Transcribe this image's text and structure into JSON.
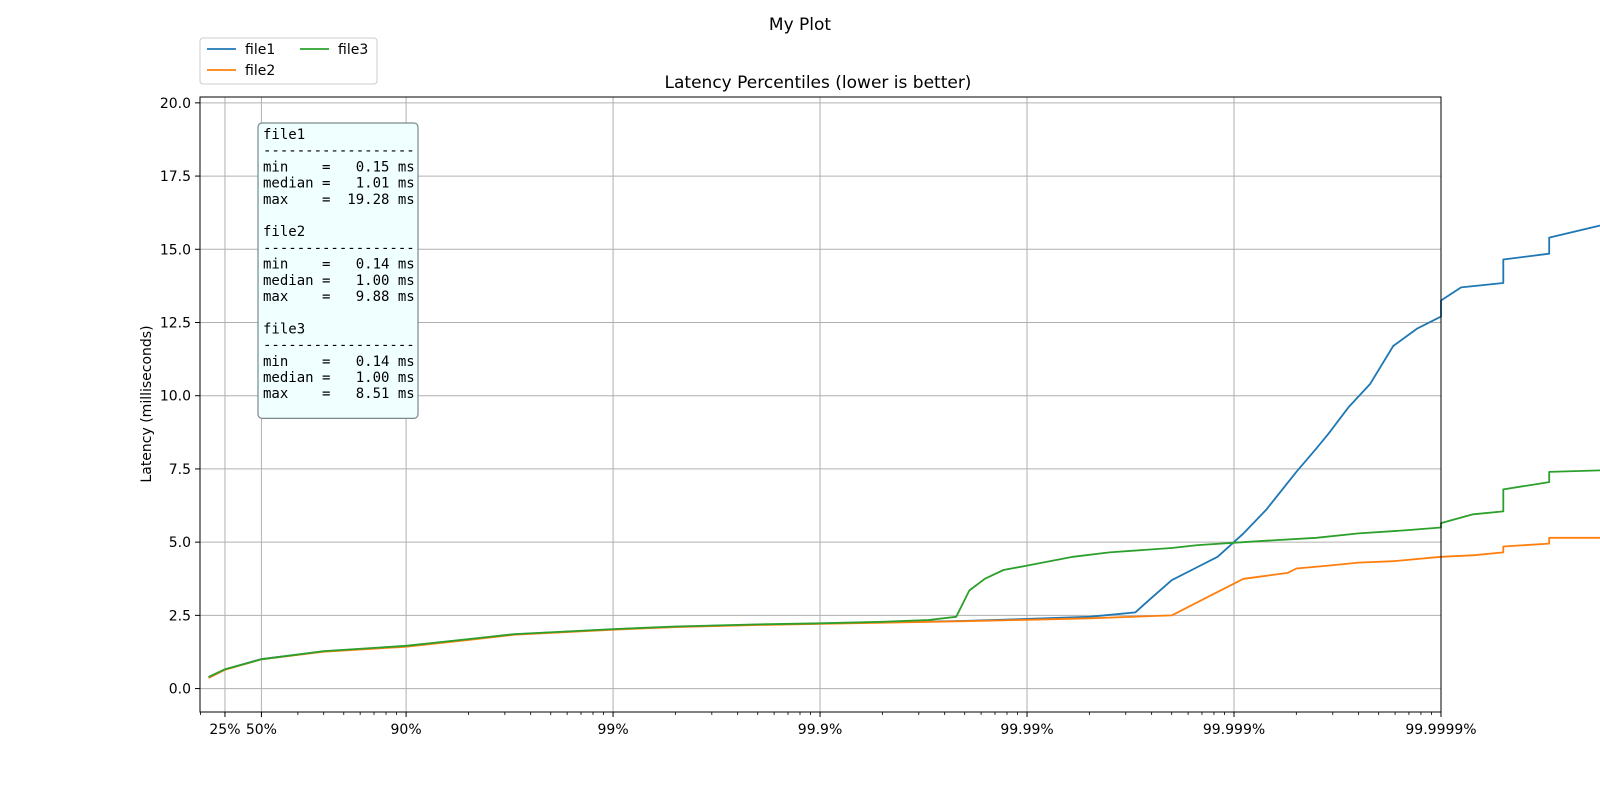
{
  "chart_data": {
    "type": "line",
    "suptitle": "My Plot",
    "title": "Latency Percentiles (lower is better)",
    "xlabel": "",
    "ylabel": "Latency (milliseconds)",
    "x_scale": "percentile (log of 1/(1-p))",
    "xlim": [
      "1%",
      "99.9999%"
    ],
    "ylim": [
      -0.8,
      20.2
    ],
    "x_ticks": [
      {
        "p": 25,
        "label": "25%"
      },
      {
        "p": 50,
        "label": "50%"
      },
      {
        "p": 90,
        "label": "90%"
      },
      {
        "p": 99,
        "label": "99%"
      },
      {
        "p": 99.9,
        "label": "99.9%"
      },
      {
        "p": 99.99,
        "label": "99.99%"
      },
      {
        "p": 99.999,
        "label": "99.999%"
      },
      {
        "p": 99.9999,
        "label": "99.9999%"
      }
    ],
    "y_ticks": [
      {
        "v": 0,
        "label": "0.0"
      },
      {
        "v": 2.5,
        "label": "2.5"
      },
      {
        "v": 5,
        "label": "5.0"
      },
      {
        "v": 7.5,
        "label": "7.5"
      },
      {
        "v": 10,
        "label": "10.0"
      },
      {
        "v": 12.5,
        "label": "12.5"
      },
      {
        "v": 15,
        "label": "15.0"
      },
      {
        "v": 17.5,
        "label": "17.5"
      },
      {
        "v": 20,
        "label": "20.0"
      }
    ],
    "grid": true,
    "legend_position": "top-left, above the axes, 2 columns",
    "series": [
      {
        "name": "file1",
        "color": "#1f77b4",
        "points": [
          [
            10,
            0.38
          ],
          [
            25,
            0.65
          ],
          [
            50,
            1.01
          ],
          [
            75,
            1.27
          ],
          [
            90,
            1.45
          ],
          [
            95,
            1.68
          ],
          [
            97,
            1.85
          ],
          [
            99,
            2.02
          ],
          [
            99.5,
            2.11
          ],
          [
            99.8,
            2.18
          ],
          [
            99.9,
            2.22
          ],
          [
            99.95,
            2.26
          ],
          [
            99.98,
            2.31
          ],
          [
            99.99,
            2.38
          ],
          [
            99.995,
            2.45
          ],
          [
            99.997,
            2.6
          ],
          [
            99.9975,
            3.1
          ],
          [
            99.998,
            3.7
          ],
          [
            99.9985,
            4.15
          ],
          [
            99.9988,
            4.5
          ],
          [
            99.9991,
            5.3
          ],
          [
            99.9993,
            6.1
          ],
          [
            99.9995,
            7.4
          ],
          [
            99.9996,
            8.2
          ],
          [
            99.99965,
            8.7
          ],
          [
            99.99972,
            9.6
          ],
          [
            99.99978,
            10.4
          ],
          [
            99.99983,
            11.7
          ],
          [
            99.99987,
            12.3
          ],
          [
            99.9999,
            12.7
          ],
          [
            99.9999,
            13.25
          ],
          [
            99.99992,
            13.7
          ],
          [
            99.99995,
            13.85
          ],
          [
            99.99995,
            14.65
          ],
          [
            99.99997,
            14.85
          ],
          [
            99.99997,
            15.4
          ],
          [
            99.99999,
            16.2
          ],
          [
            99.99999,
            16.8
          ]
        ]
      },
      {
        "name": "file2",
        "color": "#ff7f0e",
        "points": [
          [
            10,
            0.36
          ],
          [
            25,
            0.64
          ],
          [
            50,
            1.0
          ],
          [
            75,
            1.26
          ],
          [
            90,
            1.43
          ],
          [
            95,
            1.66
          ],
          [
            97,
            1.84
          ],
          [
            99,
            2.01
          ],
          [
            99.5,
            2.1
          ],
          [
            99.8,
            2.17
          ],
          [
            99.9,
            2.21
          ],
          [
            99.95,
            2.25
          ],
          [
            99.98,
            2.3
          ],
          [
            99.99,
            2.35
          ],
          [
            99.995,
            2.4
          ],
          [
            99.998,
            2.5
          ],
          [
            99.9985,
            2.95
          ],
          [
            99.9988,
            3.3
          ],
          [
            99.9991,
            3.75
          ],
          [
            99.9993,
            3.85
          ],
          [
            99.99945,
            3.95
          ],
          [
            99.9995,
            4.1
          ],
          [
            99.99965,
            4.2
          ],
          [
            99.99975,
            4.3
          ],
          [
            99.99983,
            4.35
          ],
          [
            99.9999,
            4.5
          ],
          [
            99.99993,
            4.55
          ],
          [
            99.99995,
            4.65
          ],
          [
            99.99995,
            4.85
          ],
          [
            99.99997,
            4.95
          ],
          [
            99.99997,
            5.15
          ],
          [
            99.99999,
            5.15
          ],
          [
            99.99999,
            5.5
          ]
        ]
      },
      {
        "name": "file3",
        "color": "#2ca02c",
        "points": [
          [
            10,
            0.4
          ],
          [
            25,
            0.66
          ],
          [
            50,
            1.0
          ],
          [
            75,
            1.28
          ],
          [
            90,
            1.46
          ],
          [
            95,
            1.69
          ],
          [
            97,
            1.86
          ],
          [
            99,
            2.03
          ],
          [
            99.5,
            2.12
          ],
          [
            99.8,
            2.19
          ],
          [
            99.9,
            2.23
          ],
          [
            99.95,
            2.28
          ],
          [
            99.97,
            2.34
          ],
          [
            99.978,
            2.45
          ],
          [
            99.981,
            3.35
          ],
          [
            99.984,
            3.75
          ],
          [
            99.987,
            4.05
          ],
          [
            99.99,
            4.2
          ],
          [
            99.994,
            4.5
          ],
          [
            99.996,
            4.65
          ],
          [
            99.998,
            4.8
          ],
          [
            99.9985,
            4.9
          ],
          [
            99.9993,
            5.05
          ],
          [
            99.9996,
            5.15
          ],
          [
            99.99975,
            5.3
          ],
          [
            99.99985,
            5.4
          ],
          [
            99.9999,
            5.5
          ],
          [
            99.9999,
            5.65
          ],
          [
            99.99993,
            5.95
          ],
          [
            99.99995,
            6.05
          ],
          [
            99.99995,
            6.8
          ],
          [
            99.99997,
            7.05
          ],
          [
            99.99997,
            7.4
          ],
          [
            99.99999,
            7.5
          ],
          [
            99.99999,
            8.1
          ]
        ]
      }
    ]
  },
  "stats_box": {
    "lines": [
      "file1",
      "------------------",
      "min    =   0.15 ms",
      "median =   1.01 ms",
      "max    =  19.28 ms",
      "",
      "file2",
      "------------------",
      "min    =   0.14 ms",
      "median =   1.00 ms",
      "max    =   9.88 ms",
      "",
      "file3",
      "------------------",
      "min    =   0.14 ms",
      "median =   1.00 ms",
      "max    =   8.51 ms"
    ],
    "background": "#f0ffff"
  }
}
